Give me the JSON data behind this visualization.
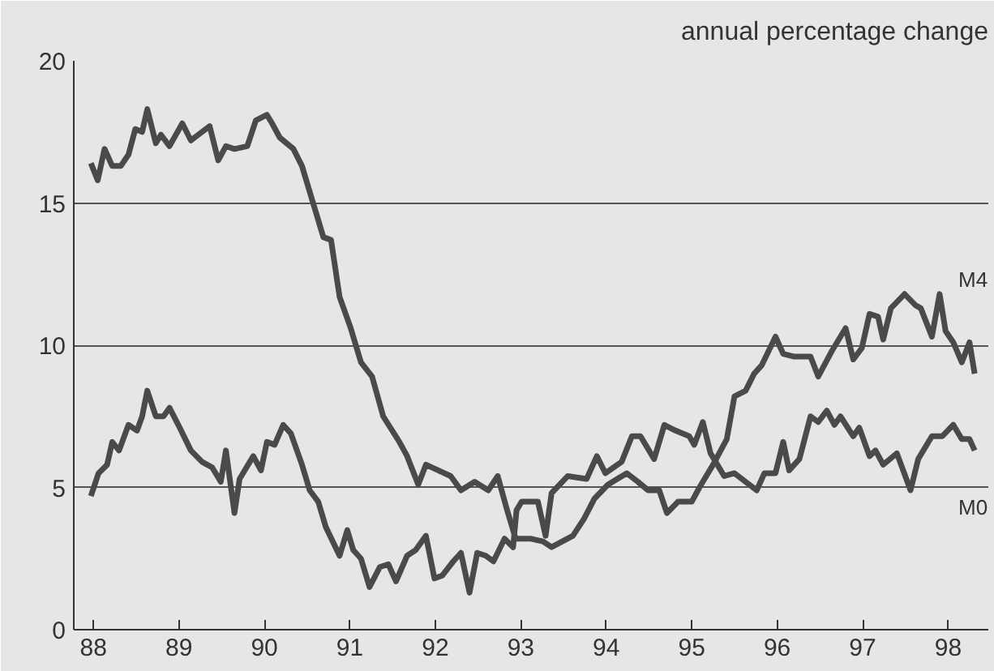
{
  "chart_data": {
    "type": "line",
    "ylabel": "annual percentage change",
    "xlim": [
      1987.77,
      1998.47
    ],
    "ylim": [
      0,
      20
    ],
    "xticks": [
      {
        "value": 1988,
        "label": "88"
      },
      {
        "value": 1989,
        "label": "89"
      },
      {
        "value": 1990,
        "label": "90"
      },
      {
        "value": 1991,
        "label": "91"
      },
      {
        "value": 1992,
        "label": "92"
      },
      {
        "value": 1993,
        "label": "93"
      },
      {
        "value": 1994,
        "label": "94"
      },
      {
        "value": 1995,
        "label": "95"
      },
      {
        "value": 1996,
        "label": "96"
      },
      {
        "value": 1997,
        "label": "97"
      },
      {
        "value": 1998,
        "label": "98"
      }
    ],
    "yticks": [
      0,
      5,
      10,
      15,
      20
    ],
    "grid": "y",
    "legend": false,
    "marker": "none",
    "line_style": "solid",
    "series": [
      {
        "name": "M4",
        "color": "#4a4a4a",
        "x": [
          1987.97,
          1988.05,
          1988.13,
          1988.22,
          1988.32,
          1988.41,
          1988.49,
          1988.57,
          1988.63,
          1988.73,
          1988.79,
          1988.89,
          1989.04,
          1989.14,
          1989.36,
          1989.46,
          1989.55,
          1989.65,
          1989.8,
          1989.9,
          1990.03,
          1990.09,
          1990.18,
          1990.34,
          1990.44,
          1990.56,
          1990.69,
          1990.78,
          1990.88,
          1991.01,
          1991.13,
          1991.26,
          1991.39,
          1991.58,
          1991.67,
          1991.8,
          1991.89,
          1992.18,
          1992.3,
          1992.46,
          1992.62,
          1992.73,
          1992.84,
          1992.94,
          1993.11,
          1993.26,
          1993.36,
          1993.61,
          1993.74,
          1993.86,
          1994.02,
          1994.24,
          1994.37,
          1994.49,
          1994.62,
          1994.71,
          1994.84,
          1995.0,
          1995.09,
          1995.25,
          1995.41,
          1995.5,
          1995.63,
          1995.73,
          1995.82,
          1995.98,
          1996.07,
          1996.2,
          1996.39,
          1996.48,
          1996.64,
          1996.8,
          1996.89,
          1996.99,
          1997.08,
          1997.18,
          1997.24,
          1997.33,
          1997.49,
          1997.62,
          1997.68,
          1997.81,
          1997.9,
          1997.97,
          1998.06,
          1998.16,
          1998.25,
          1998.31
        ],
        "values": [
          16.4,
          15.8,
          16.9,
          16.3,
          16.3,
          16.7,
          17.6,
          17.5,
          18.3,
          17.1,
          17.4,
          17.0,
          17.8,
          17.2,
          17.7,
          16.5,
          17.0,
          16.9,
          17.0,
          17.9,
          18.1,
          17.8,
          17.3,
          16.9,
          16.3,
          15.1,
          13.8,
          13.7,
          11.7,
          10.6,
          9.4,
          8.9,
          7.5,
          6.6,
          6.1,
          5.1,
          5.8,
          5.4,
          4.9,
          5.2,
          4.9,
          5.4,
          4.2,
          3.2,
          3.2,
          3.1,
          2.9,
          3.3,
          3.9,
          4.6,
          5.1,
          5.5,
          5.2,
          4.9,
          4.9,
          4.1,
          4.5,
          4.5,
          5.0,
          5.8,
          6.7,
          8.2,
          8.4,
          9.0,
          9.3,
          10.3,
          9.7,
          9.6,
          9.6,
          8.9,
          9.8,
          10.6,
          9.5,
          9.9,
          11.1,
          11.0,
          10.2,
          11.3,
          11.8,
          11.4,
          11.3,
          10.3,
          11.8,
          10.5,
          10.1,
          9.4,
          10.1,
          9.0
        ]
      },
      {
        "name": "M0",
        "color": "#4a4a4a",
        "x": [
          1987.97,
          1988.06,
          1988.16,
          1988.22,
          1988.3,
          1988.41,
          1988.51,
          1988.57,
          1988.63,
          1988.73,
          1988.82,
          1988.89,
          1989.01,
          1989.14,
          1989.27,
          1989.39,
          1989.49,
          1989.55,
          1989.65,
          1989.71,
          1989.87,
          1989.96,
          1990.03,
          1990.12,
          1990.22,
          1990.31,
          1990.44,
          1990.53,
          1990.63,
          1990.72,
          1990.88,
          1990.97,
          1991.04,
          1991.13,
          1991.23,
          1991.35,
          1991.45,
          1991.54,
          1991.67,
          1991.77,
          1991.89,
          1991.99,
          1992.08,
          1992.21,
          1992.3,
          1992.4,
          1992.49,
          1992.59,
          1992.68,
          1992.81,
          1992.91,
          1992.95,
          1993.01,
          1993.2,
          1993.29,
          1993.36,
          1993.55,
          1993.77,
          1993.89,
          1993.99,
          1994.18,
          1994.3,
          1994.4,
          1994.56,
          1994.68,
          1994.81,
          1994.97,
          1995.03,
          1995.13,
          1995.22,
          1995.38,
          1995.5,
          1995.63,
          1995.76,
          1995.85,
          1995.98,
          1996.07,
          1996.14,
          1996.26,
          1996.39,
          1996.48,
          1996.58,
          1996.67,
          1996.74,
          1996.89,
          1996.96,
          1997.08,
          1997.15,
          1997.24,
          1997.4,
          1997.56,
          1997.65,
          1997.81,
          1997.93,
          1998.06,
          1998.16,
          1998.25,
          1998.31
        ],
        "values": [
          4.7,
          5.5,
          5.8,
          6.6,
          6.3,
          7.2,
          7.0,
          7.5,
          8.4,
          7.5,
          7.5,
          7.8,
          7.1,
          6.3,
          5.9,
          5.7,
          5.2,
          6.3,
          4.1,
          5.3,
          6.1,
          5.6,
          6.6,
          6.5,
          7.2,
          6.9,
          5.8,
          4.9,
          4.5,
          3.6,
          2.6,
          3.5,
          2.8,
          2.5,
          1.5,
          2.2,
          2.3,
          1.7,
          2.6,
          2.8,
          3.3,
          1.8,
          1.9,
          2.4,
          2.7,
          1.3,
          2.7,
          2.6,
          2.4,
          3.2,
          2.9,
          4.2,
          4.5,
          4.5,
          3.3,
          4.8,
          5.4,
          5.3,
          6.1,
          5.5,
          5.9,
          6.8,
          6.8,
          6.0,
          7.2,
          7.0,
          6.8,
          6.5,
          7.3,
          6.2,
          5.4,
          5.5,
          5.2,
          4.9,
          5.5,
          5.5,
          6.6,
          5.6,
          6.0,
          7.5,
          7.3,
          7.7,
          7.2,
          7.5,
          6.8,
          7.1,
          6.1,
          6.3,
          5.8,
          6.2,
          4.9,
          6.0,
          6.8,
          6.8,
          7.2,
          6.7,
          6.7,
          6.3
        ]
      }
    ]
  }
}
